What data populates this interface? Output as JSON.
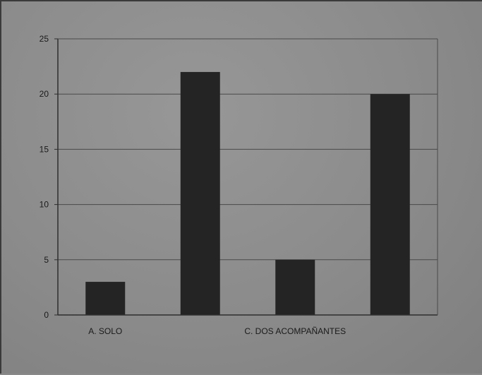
{
  "chart_data": {
    "type": "bar",
    "categories": [
      "A. SOLO",
      "",
      "C. DOS ACOMPAÑANTES",
      ""
    ],
    "values": [
      3,
      22,
      5,
      20
    ],
    "title": "",
    "xlabel": "",
    "ylabel": "",
    "ylim": [
      0,
      25
    ],
    "yticks": [
      0,
      5,
      10,
      15,
      20,
      25
    ],
    "grid": true,
    "legend": "none",
    "colors": {
      "bar": "#242424",
      "gridline": "#4a4a4a",
      "axis": "#2e2e2e"
    }
  }
}
